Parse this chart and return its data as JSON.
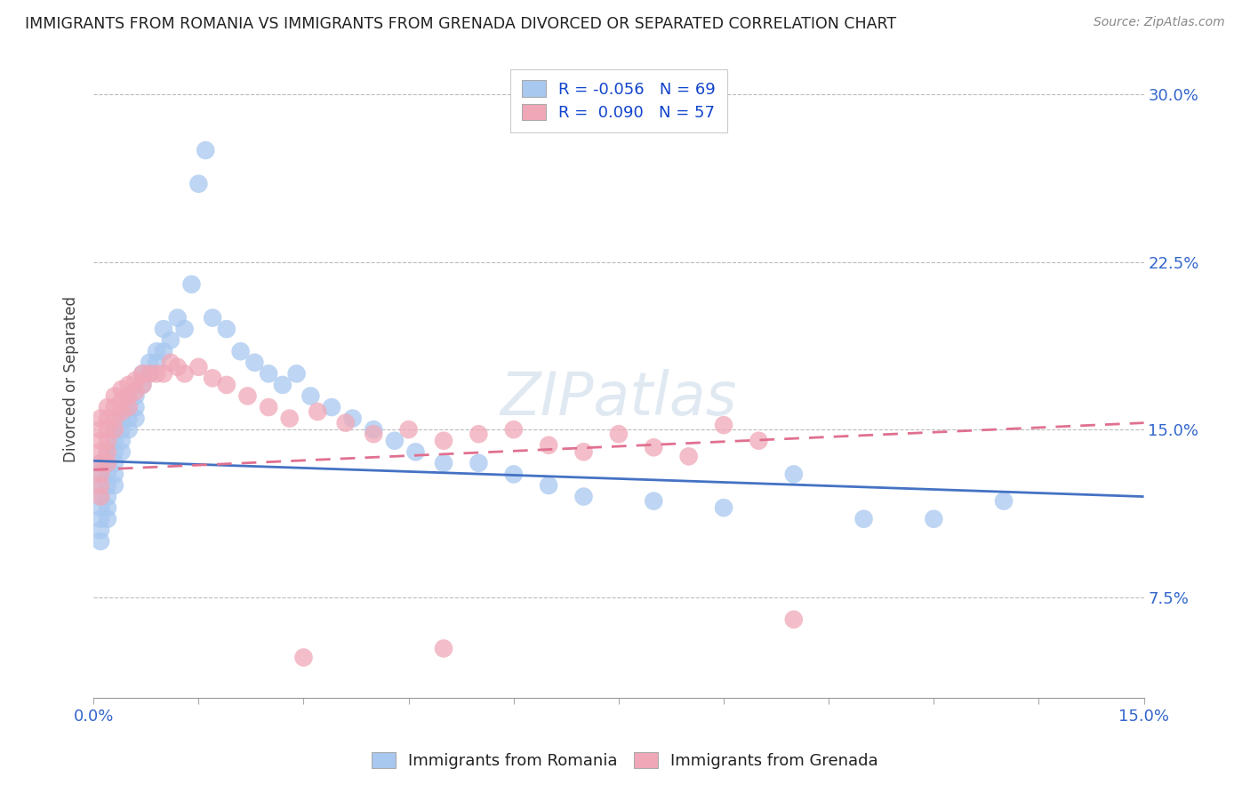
{
  "title": "IMMIGRANTS FROM ROMANIA VS IMMIGRANTS FROM GRENADA DIVORCED OR SEPARATED CORRELATION CHART",
  "source": "Source: ZipAtlas.com",
  "ylabel": "Divorced or Separated",
  "xlim": [
    0.0,
    0.15
  ],
  "ylim": [
    0.03,
    0.315
  ],
  "xtick_positions": [
    0.0,
    0.015,
    0.03,
    0.045,
    0.06,
    0.075,
    0.09,
    0.105,
    0.12,
    0.135,
    0.15
  ],
  "xticklabels": [
    "0.0%",
    "",
    "",
    "",
    "",
    "",
    "",
    "",
    "",
    "",
    "15.0%"
  ],
  "ytick_positions": [
    0.075,
    0.15,
    0.225,
    0.3
  ],
  "yticklabels": [
    "7.5%",
    "15.0%",
    "22.5%",
    "30.0%"
  ],
  "romania_color": "#a8c8f0",
  "grenada_color": "#f0a8b8",
  "romania_line_color": "#4472c4",
  "grenada_line_color": "#e07090",
  "romania_R": -0.056,
  "romania_N": 69,
  "grenada_R": 0.09,
  "grenada_N": 57,
  "legend_R_color": "#1144cc",
  "watermark": "ZIPatlas",
  "romania_trend_start": 0.136,
  "romania_trend_end": 0.12,
  "grenada_trend_start": 0.132,
  "grenada_trend_end": 0.153,
  "romania_x": [
    0.001,
    0.001,
    0.001,
    0.001,
    0.001,
    0.001,
    0.001,
    0.001,
    0.002,
    0.002,
    0.002,
    0.002,
    0.002,
    0.002,
    0.002,
    0.003,
    0.003,
    0.003,
    0.003,
    0.003,
    0.003,
    0.004,
    0.004,
    0.004,
    0.004,
    0.005,
    0.005,
    0.005,
    0.006,
    0.006,
    0.006,
    0.007,
    0.007,
    0.008,
    0.008,
    0.009,
    0.009,
    0.01,
    0.01,
    0.011,
    0.012,
    0.013,
    0.014,
    0.015,
    0.016,
    0.017,
    0.019,
    0.021,
    0.023,
    0.025,
    0.027,
    0.029,
    0.031,
    0.034,
    0.037,
    0.04,
    0.043,
    0.046,
    0.05,
    0.055,
    0.06,
    0.065,
    0.07,
    0.08,
    0.09,
    0.1,
    0.11,
    0.12,
    0.13
  ],
  "romania_y": [
    0.135,
    0.13,
    0.125,
    0.12,
    0.115,
    0.11,
    0.105,
    0.1,
    0.14,
    0.135,
    0.13,
    0.125,
    0.12,
    0.115,
    0.11,
    0.15,
    0.145,
    0.14,
    0.135,
    0.13,
    0.125,
    0.155,
    0.15,
    0.145,
    0.14,
    0.16,
    0.155,
    0.15,
    0.165,
    0.16,
    0.155,
    0.175,
    0.17,
    0.18,
    0.175,
    0.185,
    0.18,
    0.195,
    0.185,
    0.19,
    0.2,
    0.195,
    0.215,
    0.26,
    0.275,
    0.2,
    0.195,
    0.185,
    0.18,
    0.175,
    0.17,
    0.175,
    0.165,
    0.16,
    0.155,
    0.15,
    0.145,
    0.14,
    0.135,
    0.135,
    0.13,
    0.125,
    0.12,
    0.118,
    0.115,
    0.13,
    0.11,
    0.11,
    0.118
  ],
  "grenada_x": [
    0.001,
    0.001,
    0.001,
    0.001,
    0.001,
    0.001,
    0.001,
    0.001,
    0.002,
    0.002,
    0.002,
    0.002,
    0.002,
    0.002,
    0.003,
    0.003,
    0.003,
    0.003,
    0.004,
    0.004,
    0.004,
    0.005,
    0.005,
    0.005,
    0.006,
    0.006,
    0.007,
    0.007,
    0.008,
    0.009,
    0.01,
    0.011,
    0.012,
    0.013,
    0.015,
    0.017,
    0.019,
    0.022,
    0.025,
    0.028,
    0.032,
    0.036,
    0.04,
    0.045,
    0.05,
    0.055,
    0.06,
    0.065,
    0.07,
    0.075,
    0.08,
    0.085,
    0.09,
    0.095,
    0.1,
    0.05,
    0.03
  ],
  "grenada_y": [
    0.155,
    0.15,
    0.145,
    0.14,
    0.135,
    0.13,
    0.125,
    0.12,
    0.16,
    0.155,
    0.15,
    0.145,
    0.14,
    0.135,
    0.165,
    0.16,
    0.155,
    0.15,
    0.168,
    0.163,
    0.158,
    0.17,
    0.165,
    0.16,
    0.172,
    0.167,
    0.175,
    0.17,
    0.175,
    0.175,
    0.175,
    0.18,
    0.178,
    0.175,
    0.178,
    0.173,
    0.17,
    0.165,
    0.16,
    0.155,
    0.158,
    0.153,
    0.148,
    0.15,
    0.145,
    0.148,
    0.15,
    0.143,
    0.14,
    0.148,
    0.142,
    0.138,
    0.152,
    0.145,
    0.065,
    0.052,
    0.048
  ]
}
